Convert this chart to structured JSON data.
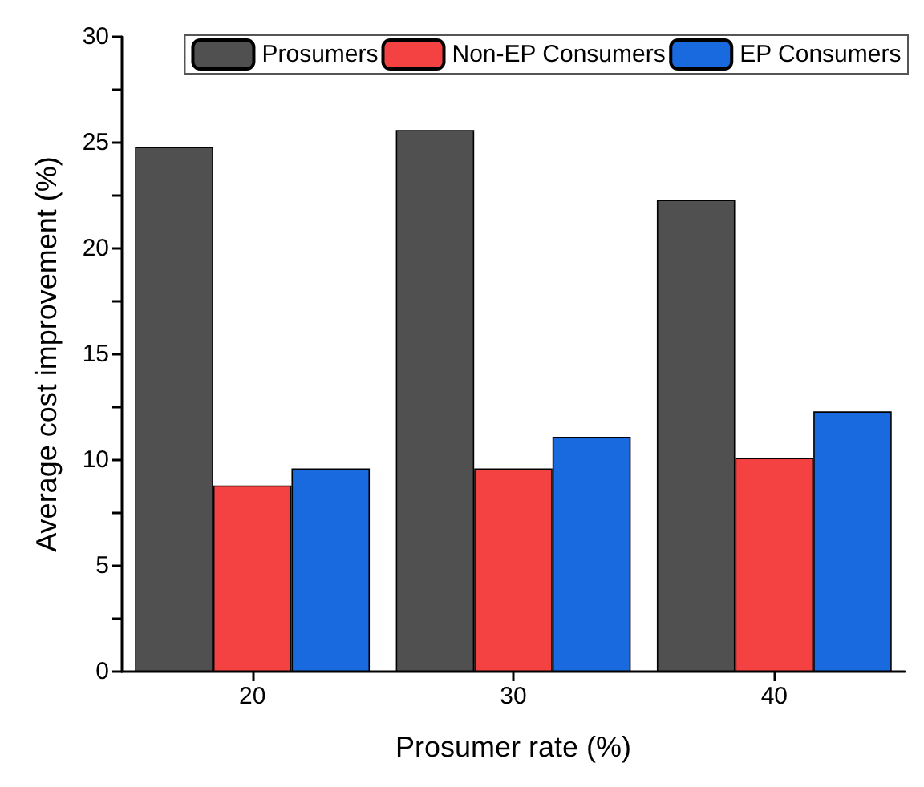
{
  "chart_data": {
    "type": "bar",
    "xlabel": "Prosumer rate (%)",
    "ylabel": "Average cost improvement (%)",
    "categories": [
      "20",
      "30",
      "40"
    ],
    "series": [
      {
        "name": "Prosumers",
        "color": "#505050",
        "values": [
          24.8,
          25.6,
          22.3
        ]
      },
      {
        "name": "Non-EP Consumers",
        "color": "#f44242",
        "values": [
          8.8,
          9.6,
          10.1
        ]
      },
      {
        "name": "EP Consumers",
        "color": "#196ade",
        "values": [
          9.6,
          11.1,
          12.3
        ]
      }
    ],
    "ylim": [
      0,
      30
    ],
    "yticks": [
      0,
      5,
      10,
      15,
      20,
      25,
      30
    ],
    "grid": false,
    "legend": "top right"
  }
}
